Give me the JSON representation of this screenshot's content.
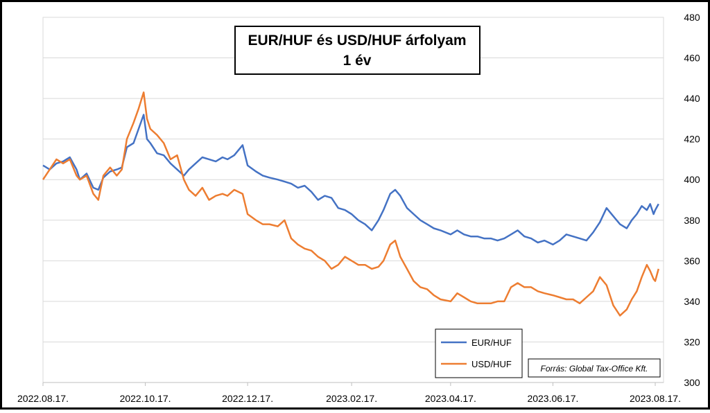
{
  "chart_data": {
    "type": "line",
    "title_line1": "EUR/HUF és USD/HUF árfolyam",
    "title_line2": "1 év",
    "source": "Forrás: Global Tax-Office Kft.",
    "ylim": [
      300,
      480
    ],
    "yticks": [
      "300",
      "320",
      "340",
      "360",
      "380",
      "400",
      "420",
      "440",
      "460",
      "480"
    ],
    "y_axis_side": "right",
    "grid": "horizontal",
    "x_start": "2022-08-17",
    "x_end": "2023-08-17",
    "xticks": [
      {
        "date": "2022-08-17",
        "label": "2022.08.17."
      },
      {
        "date": "2022-10-17",
        "label": "2022.10.17."
      },
      {
        "date": "2022-12-17",
        "label": "2022.12.17."
      },
      {
        "date": "2023-02-17",
        "label": "2023.02.17."
      },
      {
        "date": "2023-04-17",
        "label": "2023.04.17."
      },
      {
        "date": "2023-06-17",
        "label": "2023.06.17."
      },
      {
        "date": "2023-08-17",
        "label": "2023.08.17."
      }
    ],
    "legend_position": "bottom-right",
    "series": [
      {
        "name": "EUR/HUF",
        "color": "#4472C4",
        "points": [
          [
            "2022-08-17",
            407
          ],
          [
            "2022-08-21",
            405
          ],
          [
            "2022-08-25",
            408
          ],
          [
            "2022-08-29",
            409
          ],
          [
            "2022-09-02",
            411
          ],
          [
            "2022-09-06",
            405
          ],
          [
            "2022-09-08",
            400
          ],
          [
            "2022-09-12",
            403
          ],
          [
            "2022-09-16",
            396
          ],
          [
            "2022-09-19",
            395
          ],
          [
            "2022-09-22",
            401
          ],
          [
            "2022-09-26",
            404
          ],
          [
            "2022-09-30",
            405
          ],
          [
            "2022-10-03",
            406
          ],
          [
            "2022-10-06",
            416
          ],
          [
            "2022-10-10",
            418
          ],
          [
            "2022-10-13",
            425
          ],
          [
            "2022-10-16",
            432
          ],
          [
            "2022-10-18",
            420
          ],
          [
            "2022-10-20",
            418
          ],
          [
            "2022-10-24",
            413
          ],
          [
            "2022-10-28",
            412
          ],
          [
            "2022-11-01",
            408
          ],
          [
            "2022-11-05",
            405
          ],
          [
            "2022-11-09",
            402
          ],
          [
            "2022-11-12",
            405
          ],
          [
            "2022-11-16",
            408
          ],
          [
            "2022-11-20",
            411
          ],
          [
            "2022-11-24",
            410
          ],
          [
            "2022-11-28",
            409
          ],
          [
            "2022-12-02",
            411
          ],
          [
            "2022-12-05",
            410
          ],
          [
            "2022-12-09",
            412
          ],
          [
            "2022-12-14",
            417
          ],
          [
            "2022-12-17",
            407
          ],
          [
            "2022-12-22",
            404
          ],
          [
            "2022-12-26",
            402
          ],
          [
            "2022-12-30",
            401
          ],
          [
            "2023-01-04",
            400
          ],
          [
            "2023-01-08",
            399
          ],
          [
            "2023-01-12",
            398
          ],
          [
            "2023-01-16",
            396
          ],
          [
            "2023-01-20",
            397
          ],
          [
            "2023-01-24",
            394
          ],
          [
            "2023-01-28",
            390
          ],
          [
            "2023-02-01",
            392
          ],
          [
            "2023-02-05",
            391
          ],
          [
            "2023-02-09",
            386
          ],
          [
            "2023-02-13",
            385
          ],
          [
            "2023-02-17",
            383
          ],
          [
            "2023-02-21",
            380
          ],
          [
            "2023-02-25",
            378
          ],
          [
            "2023-03-01",
            375
          ],
          [
            "2023-03-05",
            380
          ],
          [
            "2023-03-08",
            385
          ],
          [
            "2023-03-12",
            393
          ],
          [
            "2023-03-15",
            395
          ],
          [
            "2023-03-18",
            392
          ],
          [
            "2023-03-22",
            386
          ],
          [
            "2023-03-26",
            383
          ],
          [
            "2023-03-30",
            380
          ],
          [
            "2023-04-03",
            378
          ],
          [
            "2023-04-07",
            376
          ],
          [
            "2023-04-11",
            375
          ],
          [
            "2023-04-17",
            373
          ],
          [
            "2023-04-21",
            375
          ],
          [
            "2023-04-25",
            373
          ],
          [
            "2023-04-29",
            372
          ],
          [
            "2023-05-03",
            372
          ],
          [
            "2023-05-07",
            371
          ],
          [
            "2023-05-11",
            371
          ],
          [
            "2023-05-15",
            370
          ],
          [
            "2023-05-19",
            371
          ],
          [
            "2023-05-23",
            373
          ],
          [
            "2023-05-27",
            375
          ],
          [
            "2023-05-31",
            372
          ],
          [
            "2023-06-04",
            371
          ],
          [
            "2023-06-08",
            369
          ],
          [
            "2023-06-12",
            370
          ],
          [
            "2023-06-17",
            368
          ],
          [
            "2023-06-21",
            370
          ],
          [
            "2023-06-25",
            373
          ],
          [
            "2023-06-29",
            372
          ],
          [
            "2023-07-03",
            371
          ],
          [
            "2023-07-07",
            370
          ],
          [
            "2023-07-11",
            374
          ],
          [
            "2023-07-15",
            379
          ],
          [
            "2023-07-19",
            386
          ],
          [
            "2023-07-23",
            382
          ],
          [
            "2023-07-27",
            378
          ],
          [
            "2023-07-31",
            376
          ],
          [
            "2023-08-03",
            380
          ],
          [
            "2023-08-06",
            383
          ],
          [
            "2023-08-09",
            387
          ],
          [
            "2023-08-12",
            385
          ],
          [
            "2023-08-14",
            388
          ],
          [
            "2023-08-16",
            383
          ],
          [
            "2023-08-17",
            385
          ],
          [
            "2023-08-19",
            388
          ]
        ]
      },
      {
        "name": "USD/HUF",
        "color": "#ED7D31",
        "points": [
          [
            "2022-08-17",
            400
          ],
          [
            "2022-08-21",
            405
          ],
          [
            "2022-08-25",
            410
          ],
          [
            "2022-08-29",
            408
          ],
          [
            "2022-09-02",
            410
          ],
          [
            "2022-09-06",
            402
          ],
          [
            "2022-09-08",
            400
          ],
          [
            "2022-09-12",
            402
          ],
          [
            "2022-09-16",
            393
          ],
          [
            "2022-09-19",
            390
          ],
          [
            "2022-09-22",
            402
          ],
          [
            "2022-09-26",
            406
          ],
          [
            "2022-09-30",
            402
          ],
          [
            "2022-10-03",
            405
          ],
          [
            "2022-10-06",
            420
          ],
          [
            "2022-10-10",
            428
          ],
          [
            "2022-10-13",
            435
          ],
          [
            "2022-10-16",
            443
          ],
          [
            "2022-10-18",
            430
          ],
          [
            "2022-10-20",
            425
          ],
          [
            "2022-10-24",
            422
          ],
          [
            "2022-10-28",
            418
          ],
          [
            "2022-11-01",
            410
          ],
          [
            "2022-11-05",
            412
          ],
          [
            "2022-11-09",
            400
          ],
          [
            "2022-11-12",
            395
          ],
          [
            "2022-11-16",
            392
          ],
          [
            "2022-11-20",
            396
          ],
          [
            "2022-11-24",
            390
          ],
          [
            "2022-11-28",
            392
          ],
          [
            "2022-12-02",
            393
          ],
          [
            "2022-12-05",
            392
          ],
          [
            "2022-12-09",
            395
          ],
          [
            "2022-12-14",
            393
          ],
          [
            "2022-12-17",
            383
          ],
          [
            "2022-12-22",
            380
          ],
          [
            "2022-12-26",
            378
          ],
          [
            "2022-12-30",
            378
          ],
          [
            "2023-01-04",
            377
          ],
          [
            "2023-01-08",
            380
          ],
          [
            "2023-01-12",
            371
          ],
          [
            "2023-01-16",
            368
          ],
          [
            "2023-01-20",
            366
          ],
          [
            "2023-01-24",
            365
          ],
          [
            "2023-01-28",
            362
          ],
          [
            "2023-02-01",
            360
          ],
          [
            "2023-02-05",
            356
          ],
          [
            "2023-02-09",
            358
          ],
          [
            "2023-02-13",
            362
          ],
          [
            "2023-02-17",
            360
          ],
          [
            "2023-02-21",
            358
          ],
          [
            "2023-02-25",
            358
          ],
          [
            "2023-03-01",
            356
          ],
          [
            "2023-03-05",
            357
          ],
          [
            "2023-03-08",
            360
          ],
          [
            "2023-03-12",
            368
          ],
          [
            "2023-03-15",
            370
          ],
          [
            "2023-03-18",
            362
          ],
          [
            "2023-03-22",
            356
          ],
          [
            "2023-03-26",
            350
          ],
          [
            "2023-03-30",
            347
          ],
          [
            "2023-04-03",
            346
          ],
          [
            "2023-04-07",
            343
          ],
          [
            "2023-04-11",
            341
          ],
          [
            "2023-04-17",
            340
          ],
          [
            "2023-04-21",
            344
          ],
          [
            "2023-04-25",
            342
          ],
          [
            "2023-04-29",
            340
          ],
          [
            "2023-05-03",
            339
          ],
          [
            "2023-05-07",
            339
          ],
          [
            "2023-05-11",
            339
          ],
          [
            "2023-05-15",
            340
          ],
          [
            "2023-05-19",
            340
          ],
          [
            "2023-05-23",
            347
          ],
          [
            "2023-05-27",
            349
          ],
          [
            "2023-05-31",
            347
          ],
          [
            "2023-06-04",
            347
          ],
          [
            "2023-06-08",
            345
          ],
          [
            "2023-06-12",
            344
          ],
          [
            "2023-06-17",
            343
          ],
          [
            "2023-06-21",
            342
          ],
          [
            "2023-06-25",
            341
          ],
          [
            "2023-06-29",
            341
          ],
          [
            "2023-07-03",
            339
          ],
          [
            "2023-07-07",
            342
          ],
          [
            "2023-07-11",
            345
          ],
          [
            "2023-07-15",
            352
          ],
          [
            "2023-07-19",
            348
          ],
          [
            "2023-07-23",
            338
          ],
          [
            "2023-07-27",
            333
          ],
          [
            "2023-07-31",
            336
          ],
          [
            "2023-08-03",
            341
          ],
          [
            "2023-08-06",
            345
          ],
          [
            "2023-08-09",
            352
          ],
          [
            "2023-08-12",
            358
          ],
          [
            "2023-08-14",
            355
          ],
          [
            "2023-08-16",
            351
          ],
          [
            "2023-08-17",
            350
          ],
          [
            "2023-08-19",
            356
          ]
        ]
      }
    ]
  }
}
